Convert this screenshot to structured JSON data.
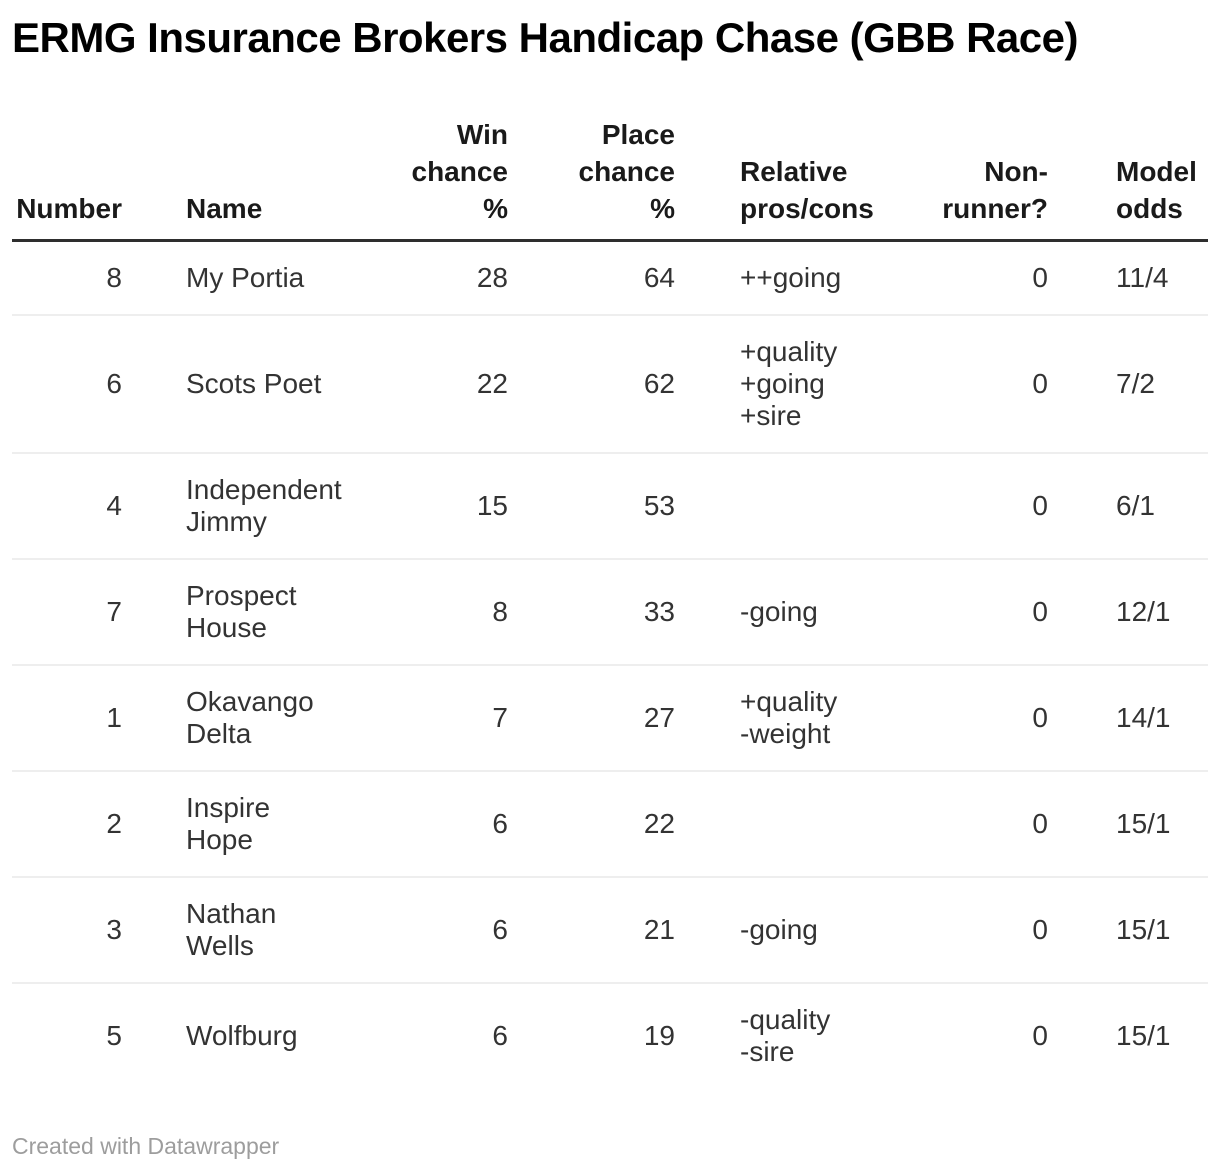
{
  "title": "ERMG Insurance Brokers Handicap Chase (GBB Race)",
  "table": {
    "columns": [
      {
        "label": "Number",
        "align": "right"
      },
      {
        "label": "Name",
        "align": "left"
      },
      {
        "label": "Win\nchance\n%",
        "align": "right"
      },
      {
        "label": "Place\nchance\n%",
        "align": "right"
      },
      {
        "label": "Relative\npros/cons",
        "align": "left"
      },
      {
        "label": "Non-\nrunner?",
        "align": "right"
      },
      {
        "label": "Model\nodds",
        "align": "left"
      }
    ],
    "rows": [
      {
        "number": "8",
        "name": "My Portia",
        "win": "28",
        "place": "64",
        "pros": "++going",
        "non_runner": "0",
        "odds": "11/4"
      },
      {
        "number": "6",
        "name": "Scots Poet",
        "win": "22",
        "place": "62",
        "pros": "+quality\n+going\n+sire",
        "non_runner": "0",
        "odds": "7/2"
      },
      {
        "number": "4",
        "name": "Independent\nJimmy",
        "win": "15",
        "place": "53",
        "pros": "",
        "non_runner": "0",
        "odds": "6/1"
      },
      {
        "number": "7",
        "name": "Prospect\nHouse",
        "win": "8",
        "place": "33",
        "pros": "-going",
        "non_runner": "0",
        "odds": "12/1"
      },
      {
        "number": "1",
        "name": "Okavango\nDelta",
        "win": "7",
        "place": "27",
        "pros": "+quality\n-weight",
        "non_runner": "0",
        "odds": "14/1"
      },
      {
        "number": "2",
        "name": "Inspire\nHope",
        "win": "6",
        "place": "22",
        "pros": "",
        "non_runner": "0",
        "odds": "15/1"
      },
      {
        "number": "3",
        "name": "Nathan\nWells",
        "win": "6",
        "place": "21",
        "pros": "-going",
        "non_runner": "0",
        "odds": "15/1"
      },
      {
        "number": "5",
        "name": "Wolfburg",
        "win": "6",
        "place": "19",
        "pros": "-quality\n-sire",
        "non_runner": "0",
        "odds": "15/1"
      }
    ]
  },
  "footer": {
    "credit": "Created with Datawrapper"
  },
  "colors": {
    "title_text": "#000000",
    "header_text": "#1a1a1a",
    "body_text": "#333333",
    "header_rule": "#2e2e2e",
    "row_separator": "#eeeeee",
    "credit_text": "#9d9d9d",
    "background": "#ffffff"
  },
  "chart_data": {
    "type": "table",
    "title": "ERMG Insurance Brokers Handicap Chase (GBB Race)",
    "columns": [
      "Number",
      "Name",
      "Win chance %",
      "Place chance %",
      "Relative pros/cons",
      "Non-runner?",
      "Model odds"
    ],
    "rows": [
      [
        8,
        "My Portia",
        28,
        64,
        "++going",
        0,
        "11/4"
      ],
      [
        6,
        "Scots Poet",
        22,
        62,
        "+quality +going +sire",
        0,
        "7/2"
      ],
      [
        4,
        "Independent Jimmy",
        15,
        53,
        "",
        0,
        "6/1"
      ],
      [
        7,
        "Prospect House",
        8,
        33,
        "-going",
        0,
        "12/1"
      ],
      [
        1,
        "Okavango Delta",
        7,
        27,
        "+quality -weight",
        0,
        "14/1"
      ],
      [
        2,
        "Inspire Hope",
        6,
        22,
        "",
        0,
        "15/1"
      ],
      [
        3,
        "Nathan Wells",
        6,
        21,
        "-going",
        0,
        "15/1"
      ],
      [
        5,
        "Wolfburg",
        6,
        19,
        "-quality -sire",
        0,
        "15/1"
      ]
    ],
    "layout_hints": {
      "numeric_columns_right_aligned": true,
      "grid": "horizontal-separators-only",
      "header_rule": "thick-dark",
      "legend": "none"
    }
  }
}
